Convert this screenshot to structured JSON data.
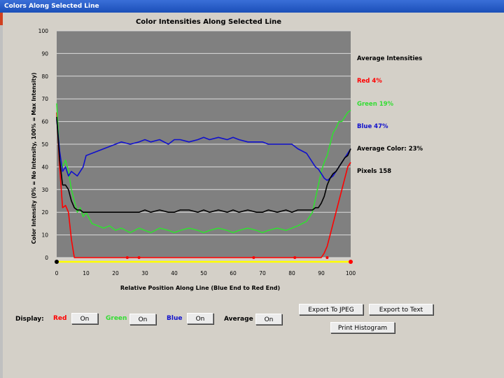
{
  "window": {
    "title": "Colors Along Selected Line"
  },
  "colors": {
    "red": "#ff0000",
    "green": "#33dd33",
    "blue": "#1010cc",
    "average": "#000000",
    "yellow": "#ffff00"
  },
  "chart_data": {
    "type": "line",
    "title": "Color Intensities Along Selected Line",
    "xlabel": "Relative Position Along Line (Blue End to Red End)",
    "ylabel": "Color Intensity (0% = No Intensity, 100% = Max Intensity)",
    "xlim": [
      0,
      100
    ],
    "ylim": [
      0,
      100
    ],
    "xticks": [
      "0",
      "10",
      "20",
      "30",
      "40",
      "50",
      "60",
      "70",
      "80",
      "90",
      "100"
    ],
    "yticks": [
      "0",
      "10",
      "20",
      "30",
      "40",
      "50",
      "60",
      "70",
      "80",
      "90",
      "100"
    ],
    "grid": true,
    "x": [
      0,
      1,
      2,
      3,
      4,
      5,
      6,
      7,
      8,
      9,
      10,
      12,
      14,
      16,
      18,
      20,
      22,
      25,
      28,
      30,
      32,
      35,
      38,
      40,
      42,
      45,
      48,
      50,
      52,
      55,
      58,
      60,
      62,
      65,
      68,
      70,
      72,
      75,
      78,
      80,
      82,
      85,
      87,
      88,
      89,
      90,
      91,
      92,
      93,
      94,
      95,
      96,
      97,
      98,
      99,
      100
    ],
    "series": [
      {
        "name": "Red",
        "color": "#ff0000",
        "values": [
          64,
          40,
          22,
          23,
          20,
          8,
          0,
          0,
          0,
          0,
          0,
          0,
          0,
          0,
          0,
          0,
          0,
          0,
          0,
          0,
          0,
          0,
          0,
          0,
          0,
          0,
          0,
          0,
          0,
          0,
          0,
          0,
          0,
          0,
          0,
          0,
          0,
          0,
          0,
          0,
          0,
          0,
          0,
          0,
          0,
          0,
          2,
          5,
          10,
          15,
          20,
          25,
          30,
          35,
          40,
          42
        ]
      },
      {
        "name": "Green",
        "color": "#33dd33",
        "values": [
          68,
          45,
          40,
          43,
          38,
          30,
          25,
          20,
          22,
          18,
          20,
          15,
          14,
          13,
          14,
          12,
          13,
          11,
          13,
          12,
          11,
          13,
          12,
          11,
          12,
          13,
          12,
          11,
          12,
          13,
          12,
          11,
          12,
          13,
          12,
          11,
          12,
          13,
          12,
          13,
          14,
          16,
          20,
          26,
          32,
          38,
          42,
          45,
          50,
          55,
          57,
          60,
          60,
          62,
          64,
          65
        ]
      },
      {
        "name": "Blue",
        "color": "#1010cc",
        "values": [
          61,
          47,
          38,
          40,
          36,
          38,
          37,
          36,
          38,
          40,
          45,
          46,
          47,
          48,
          49,
          50,
          51,
          50,
          51,
          52,
          51,
          52,
          50,
          52,
          52,
          51,
          52,
          53,
          52,
          53,
          52,
          53,
          52,
          51,
          51,
          51,
          50,
          50,
          50,
          50,
          48,
          46,
          42,
          40,
          39,
          37,
          35,
          34,
          35,
          36,
          38,
          40,
          42,
          44,
          46,
          48
        ]
      },
      {
        "name": "Average",
        "color": "#000000",
        "values": [
          62,
          43,
          32,
          32,
          30,
          25,
          22,
          21,
          21,
          20,
          20,
          20,
          20,
          20,
          20,
          20,
          20,
          20,
          20,
          21,
          20,
          21,
          20,
          20,
          21,
          21,
          20,
          21,
          20,
          21,
          20,
          21,
          20,
          21,
          20,
          20,
          21,
          20,
          21,
          20,
          21,
          21,
          21,
          22,
          22,
          24,
          27,
          32,
          35,
          37,
          38,
          40,
          42,
          44,
          45,
          48
        ]
      }
    ],
    "markers_x": [
      0,
      24,
      28,
      67,
      81,
      92,
      100
    ]
  },
  "legend": {
    "heading": "Average Intensities",
    "red": "Red 4%",
    "green": "Green 19%",
    "blue": "Blue 47%",
    "average": "Average Color: 23%",
    "pixels": "Pixels 158"
  },
  "display": {
    "label": "Display:",
    "red_label": "Red",
    "green_label": "Green",
    "blue_label": "Blue",
    "average_label": "Average",
    "red_toggle": "On",
    "green_toggle": "On",
    "blue_toggle": "On",
    "average_toggle": "On"
  },
  "buttons": {
    "export_jpeg": "Export To JPEG",
    "export_text": "Export to Text",
    "print_histogram": "Print Histogram"
  }
}
